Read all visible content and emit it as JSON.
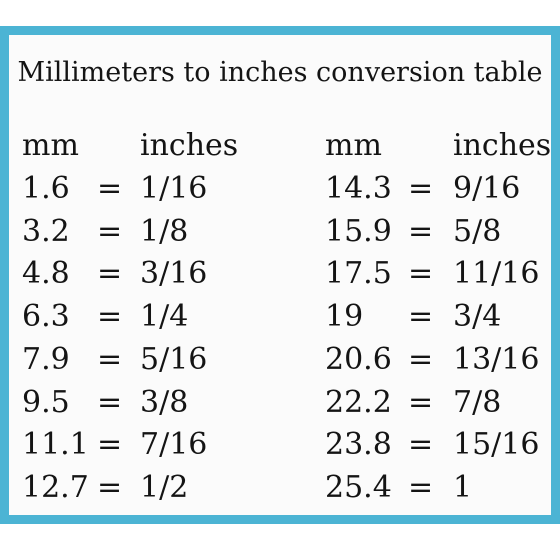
{
  "title": "Millimeters to inches conversion table",
  "headers": {
    "mm": "mm",
    "inches": "inches"
  },
  "equals": "=",
  "left_rows": [
    {
      "mm": "1.6",
      "in": "1/16"
    },
    {
      "mm": "3.2",
      "in": "1/8"
    },
    {
      "mm": "4.8",
      "in": "3/16"
    },
    {
      "mm": "6.3",
      "in": "1/4"
    },
    {
      "mm": "7.9",
      "in": "5/16"
    },
    {
      "mm": "9.5",
      "in": "3/8"
    },
    {
      "mm": "11.1",
      "in": "7/16"
    },
    {
      "mm": "12.7",
      "in": "1/2"
    }
  ],
  "right_rows": [
    {
      "mm": "14.3",
      "in": "9/16"
    },
    {
      "mm": "15.9",
      "in": "5/8"
    },
    {
      "mm": "17.5",
      "in": "11/16"
    },
    {
      "mm": "19",
      "in": "3/4"
    },
    {
      "mm": "20.6",
      "in": "13/16"
    },
    {
      "mm": "22.2",
      "in": "7/8"
    },
    {
      "mm": "23.8",
      "in": "15/16"
    },
    {
      "mm": "25.4",
      "in": "1"
    }
  ],
  "border_color": "#4cb4d4"
}
